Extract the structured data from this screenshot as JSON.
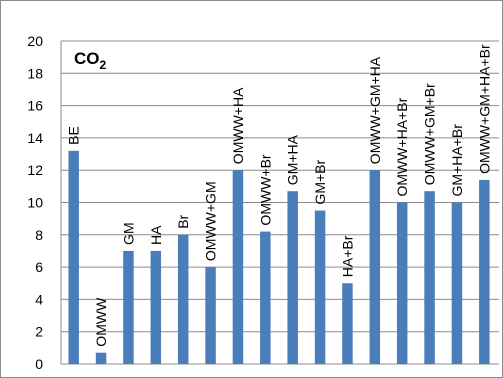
{
  "chart_data": {
    "type": "bar",
    "title": "CO2",
    "title_main": "CO",
    "title_sub": "2",
    "categories": [
      "BE",
      "OMWW",
      "GM",
      "HA",
      "Br",
      "OMWW+GM",
      "OMWW+HA",
      "OMWW+Br",
      "GM+HA",
      "GM+Br",
      "HA+Br",
      "OMWW+GM+HA",
      "OMWW+HA+Br",
      "OMWW+GM+Br",
      "GM+HA+Br",
      "OMWW+GM+HA+Br"
    ],
    "values": [
      13.2,
      0.7,
      7.0,
      7.0,
      8.0,
      6.0,
      12.0,
      8.2,
      10.7,
      9.5,
      5.0,
      12.0,
      10.0,
      10.7,
      10.0,
      11.4
    ],
    "ylim": [
      0,
      20
    ],
    "yticks": [
      "0",
      "2",
      "4",
      "6",
      "8",
      "10",
      "12",
      "14",
      "16",
      "18",
      "20"
    ],
    "xlabel": "",
    "ylabel": "",
    "grid": true,
    "bar_color": "#4a7ebb",
    "grid_color": "#8c8c8c"
  }
}
